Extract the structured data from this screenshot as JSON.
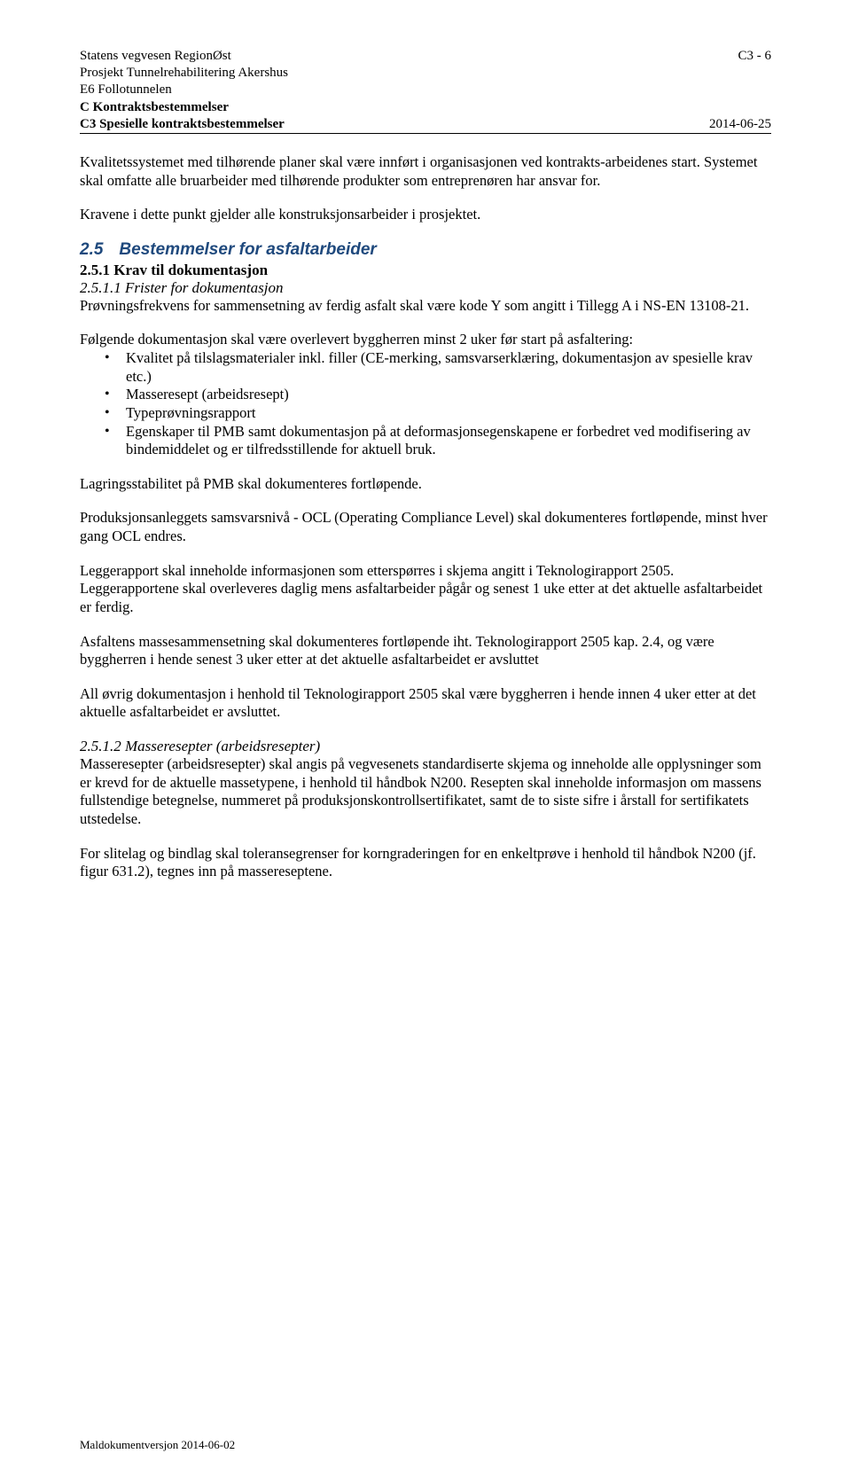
{
  "header": {
    "org": "Statens vegvesen RegionØst",
    "page_ref": "C3 - 6",
    "project": "Prosjekt Tunnelrehabilitering Akershus",
    "tunnel": "E6 Follotunnelen",
    "section_c": "C Kontraktsbestemmelser",
    "section_c3": "C3 Spesielle kontraktsbestemmelser",
    "date": "2014-06-25"
  },
  "intro": {
    "p1": "Kvalitetssystemet med tilhørende planer skal være innført i organisasjonen ved kontrakts-arbeidenes start. Systemet skal omfatte alle bruarbeider med tilhørende produkter som entreprenøren har ansvar for.",
    "p2": "Kravene i dette punkt gjelder alle konstruksjonsarbeider i prosjektet."
  },
  "s25": {
    "num": "2.5",
    "title": "Bestemmelser for asfaltarbeider",
    "s251": {
      "title": "2.5.1 Krav til dokumentasjon",
      "s2511": {
        "title": "2.5.1.1   Frister for dokumentasjon",
        "p1": "Prøvningsfrekvens for sammensetning av ferdig asfalt skal være kode Y som angitt i Tillegg A i NS-EN 13108-21.",
        "lead": "Følgende dokumentasjon skal være overlevert byggherren minst 2 uker før start på asfaltering:",
        "bullets": [
          "Kvalitet på tilslagsmaterialer inkl. filler (CE-merking, samsvarserklæring, dokumentasjon av spesielle krav etc.)",
          "Masseresept (arbeidsresept)",
          "Typeprøvningsrapport",
          "Egenskaper til PMB samt dokumentasjon på at deformasjonsegenskapene er forbedret ved modifisering av bindemiddelet og er tilfredsstillende for aktuell bruk."
        ],
        "p2": "Lagringsstabilitet på PMB skal dokumenteres fortløpende.",
        "p3": "Produksjonsanleggets samsvarsnivå - OCL (Operating Compliance Level) skal dokumenteres fortløpende, minst hver gang OCL endres.",
        "p4": "Leggerapport skal inneholde informasjonen som etterspørres i skjema angitt i Teknologirapport 2505. Leggerapportene skal overleveres daglig mens asfaltarbeider pågår og senest 1 uke etter at det aktuelle asfaltarbeidet er ferdig.",
        "p5": "Asfaltens massesammensetning skal dokumenteres fortløpende iht. Teknologirapport 2505 kap. 2.4, og være byggherren i hende senest 3 uker etter at det aktuelle asfaltarbeidet er avsluttet",
        "p6": "All øvrig dokumentasjon i henhold til Teknologirapport 2505 skal være byggherren i hende innen 4 uker etter at det aktuelle asfaltarbeidet er avsluttet."
      },
      "s2512": {
        "title": "2.5.1.2   Masseresepter (arbeidsresepter)",
        "p1": "Masseresepter (arbeidsresepter) skal angis på vegvesenets standardiserte skjema og inneholde alle opplysninger som er krevd for de aktuelle massetypene, i henhold til håndbok N200. Resepten skal inneholde informasjon om massens fullstendige betegnelse, nummeret på produksjonskontrollsertifikatet, samt de to siste sifre i årstall for sertifikatets utstedelse.",
        "p2": "For slitelag og bindlag skal toleransegrenser for korngraderingen for en enkeltprøve i henhold til håndbok N200 (jf. figur 631.2), tegnes inn på massereseptene."
      }
    }
  },
  "footer": "Maldokumentversjon 2014-06-02"
}
